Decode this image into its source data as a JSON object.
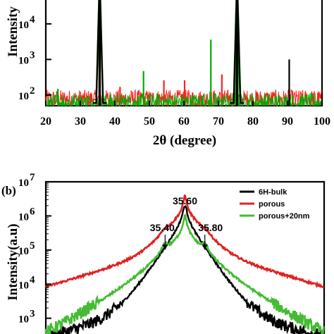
{
  "chart_data": [
    {
      "type": "line",
      "title": "",
      "xlabel": "2θ (degree)",
      "ylabel": "Intensity",
      "xlim": [
        20,
        100
      ],
      "ylim_log10": [
        1.7,
        4.75
      ],
      "yscale": "log",
      "xticks": [
        "20",
        "30",
        "40",
        "50",
        "60",
        "70",
        "80",
        "90",
        "100"
      ],
      "yticks": [
        {
          "value": 100,
          "base": "10",
          "exp": "2"
        },
        {
          "value": 1000,
          "base": "10",
          "exp": "3"
        },
        {
          "value": 10000,
          "base": "10",
          "exp": "4"
        }
      ],
      "series": [
        {
          "color": "#ff2020",
          "baseline": 75,
          "peaks": [
            [
              35.6,
              200000
            ],
            [
              41.5,
              170
            ],
            [
              54.2,
              260
            ],
            [
              60.2,
              260
            ],
            [
              71.0,
              380
            ],
            [
              75.4,
              200000
            ]
          ]
        },
        {
          "color": "#00aa00",
          "baseline": 60,
          "peaks": [
            [
              35.6,
              300000
            ],
            [
              23.5,
              150
            ],
            [
              48.3,
              470
            ],
            [
              67.8,
              3600
            ],
            [
              75.4,
              300000
            ],
            [
              75.5,
              40000
            ]
          ]
        },
        {
          "color": "#000000",
          "baseline": 1,
          "peaks": [
            [
              35.6,
              200000
            ],
            [
              75.4,
              200000
            ],
            [
              90.5,
              1000
            ]
          ]
        }
      ]
    },
    {
      "panel_label": "(b)",
      "type": "line",
      "xlabel": "",
      "ylabel": "Intensity(a.u)",
      "yscale": "log",
      "xlim": [
        34.2,
        37.0
      ],
      "ylim_log10": [
        2.25,
        7.0
      ],
      "yticks": [
        {
          "value": 1000,
          "base": "10",
          "exp": "3"
        },
        {
          "value": 10000,
          "base": "10",
          "exp": "4"
        },
        {
          "value": 100000,
          "base": "10",
          "exp": "5"
        },
        {
          "value": 1000000,
          "base": "10",
          "exp": "6"
        },
        {
          "value": 10000000,
          "base": "10",
          "exp": "7"
        }
      ],
      "legend_position": "top-right",
      "series": [
        {
          "name": "6H-bulk",
          "color": "#000000",
          "components": [
            [
              35.6,
              2000000,
              0.022,
              0.1
            ]
          ]
        },
        {
          "name": "porous",
          "color": "#e02020",
          "components": [
            [
              35.6,
              4000000,
              0.014,
              0.11
            ],
            [
              35.4,
              150000,
              0.05,
              0.5
            ],
            [
              35.8,
              150000,
              0.05,
              0.5
            ]
          ]
        },
        {
          "name": "porous+20nm",
          "color": "#44bb33",
          "components": [
            [
              35.6,
              1000000,
              0.016,
              0.1
            ],
            [
              35.4,
              100000,
              0.03,
              0.23
            ],
            [
              35.8,
              100000,
              0.03,
              0.23
            ]
          ]
        }
      ],
      "annotations": [
        {
          "text": "35.60",
          "x": 35.6,
          "y": 10000000
        },
        {
          "text": "35.40",
          "x": 35.4,
          "y": 200000
        },
        {
          "text": "35.80",
          "x": 35.8,
          "y": 200000
        }
      ]
    }
  ]
}
